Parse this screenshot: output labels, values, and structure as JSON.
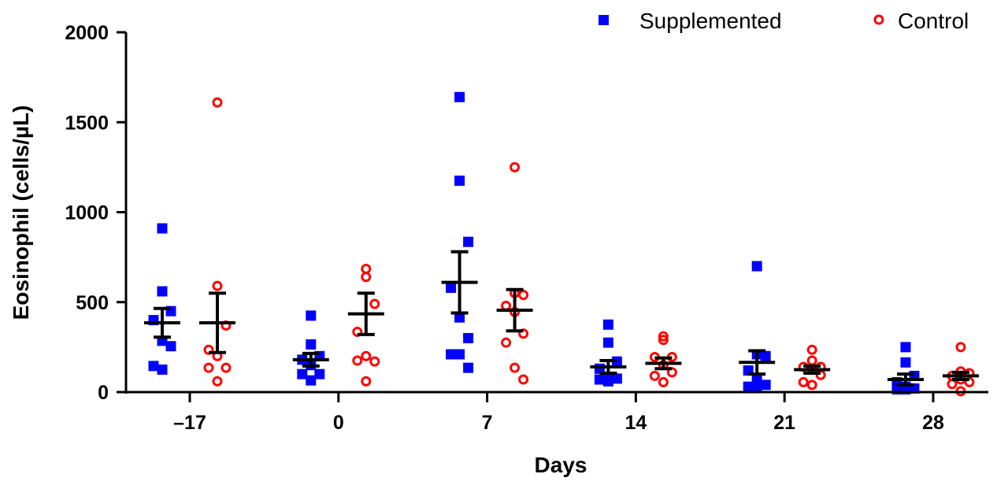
{
  "chart_data": {
    "type": "scatter",
    "title": "",
    "xlabel": "Days",
    "ylabel": "Eosinophil (cells/µL)",
    "ylim": [
      0,
      2000
    ],
    "yticks": [
      "0",
      "500",
      "1000",
      "1500",
      "2000"
    ],
    "ytick_values": [
      0,
      500,
      1000,
      1500,
      2000
    ],
    "categories": [
      "–17",
      "0",
      "7",
      "14",
      "21",
      "28"
    ],
    "legend_placement": "top-right",
    "grid": false,
    "series": [
      {
        "name": "Supplemented",
        "color": "#0000ff",
        "marker": "square",
        "values": [
          [
            910,
            560,
            450,
            400,
            285,
            255,
            145,
            125
          ],
          [
            425,
            265,
            200,
            180,
            150,
            100,
            100,
            65
          ],
          [
            1640,
            1175,
            835,
            580,
            415,
            300,
            210,
            210,
            135
          ],
          [
            375,
            275,
            170,
            130,
            85,
            75,
            70,
            60
          ],
          [
            700,
            210,
            200,
            120,
            70,
            40,
            30,
            35
          ],
          [
            250,
            165,
            90,
            55,
            30,
            20,
            15,
            15
          ]
        ],
        "mean": [
          385,
          180,
          610,
          140,
          165,
          70
        ],
        "sem": [
          80,
          35,
          170,
          35,
          65,
          30
        ]
      },
      {
        "name": "Control",
        "color": "#ff0000",
        "marker": "open-circle",
        "values": [
          [
            1610,
            590,
            370,
            235,
            200,
            135,
            135,
            60
          ],
          [
            685,
            640,
            490,
            335,
            200,
            170,
            175,
            60
          ],
          [
            1250,
            550,
            540,
            480,
            445,
            325,
            275,
            135,
            70
          ],
          [
            310,
            290,
            195,
            195,
            150,
            110,
            90,
            55
          ],
          [
            235,
            175,
            140,
            140,
            125,
            95,
            55,
            40
          ],
          [
            250,
            115,
            105,
            90,
            70,
            55,
            45,
            5
          ]
        ],
        "mean": [
          385,
          435,
          455,
          160,
          125,
          90
        ],
        "sem": [
          165,
          115,
          115,
          30,
          20,
          20
        ]
      }
    ]
  }
}
